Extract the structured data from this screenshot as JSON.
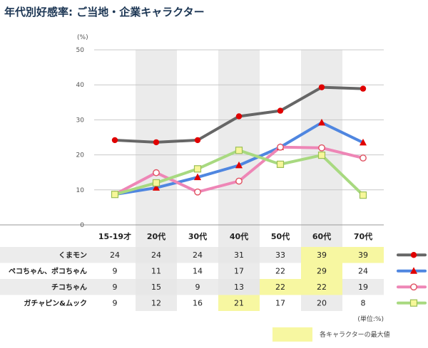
{
  "title": "年代別好感率: ご当地・企業キャラクター",
  "unit_top": "(%)",
  "unit_note": "(単位:%)",
  "legend_note": "各キャラクターの最大値",
  "colors": {
    "highlight": "#f7f7a1",
    "col_band": "#ebebeb",
    "row_band": "#e6e6e6",
    "grid": "#c8c8c8"
  },
  "chart_data": {
    "type": "line",
    "title": "年代別好感率: ご当地・企業キャラクター",
    "ylabel": "(%)",
    "ylim": [
      0,
      50
    ],
    "yticks": [
      0,
      10,
      20,
      30,
      40,
      50
    ],
    "categories": [
      "15-19才",
      "20代",
      "30代",
      "40代",
      "50代",
      "60代",
      "70代"
    ],
    "series": [
      {
        "name": "くまモン",
        "values": [
          24,
          24,
          24,
          31,
          33,
          39,
          39
        ],
        "color": "#666666",
        "marker": "dot",
        "marker_color": "#e00000",
        "highlight": [
          5,
          6
        ]
      },
      {
        "name": "ペコちゃん、ポコちゃん",
        "values": [
          9,
          11,
          14,
          17,
          22,
          29,
          24
        ],
        "color": "#4f86e0",
        "marker": "triangle",
        "marker_color": "#e00000",
        "highlight": [
          5
        ]
      },
      {
        "name": "チコちゃん",
        "values": [
          9,
          15,
          9,
          13,
          22,
          22,
          19
        ],
        "color": "#ee86b6",
        "marker": "ring",
        "marker_color": "#e05060",
        "highlight": [
          4,
          5
        ]
      },
      {
        "name": "ガチャピン&ムック",
        "values": [
          9,
          12,
          16,
          21,
          17,
          20,
          8
        ],
        "color": "#a8d980",
        "marker": "square",
        "marker_color": "#9bbf56",
        "highlight": [
          3
        ]
      }
    ],
    "plot_series_values": [
      [
        24.2,
        23.6,
        24.2,
        31.0,
        32.6,
        39.3,
        38.9
      ],
      [
        8.7,
        10.6,
        13.6,
        17.0,
        22.2,
        29.2,
        23.5
      ],
      [
        8.7,
        14.9,
        9.4,
        12.5,
        22.2,
        22.0,
        19.1
      ],
      [
        8.7,
        12.0,
        16.0,
        21.3,
        17.3,
        19.9,
        8.5
      ]
    ]
  }
}
